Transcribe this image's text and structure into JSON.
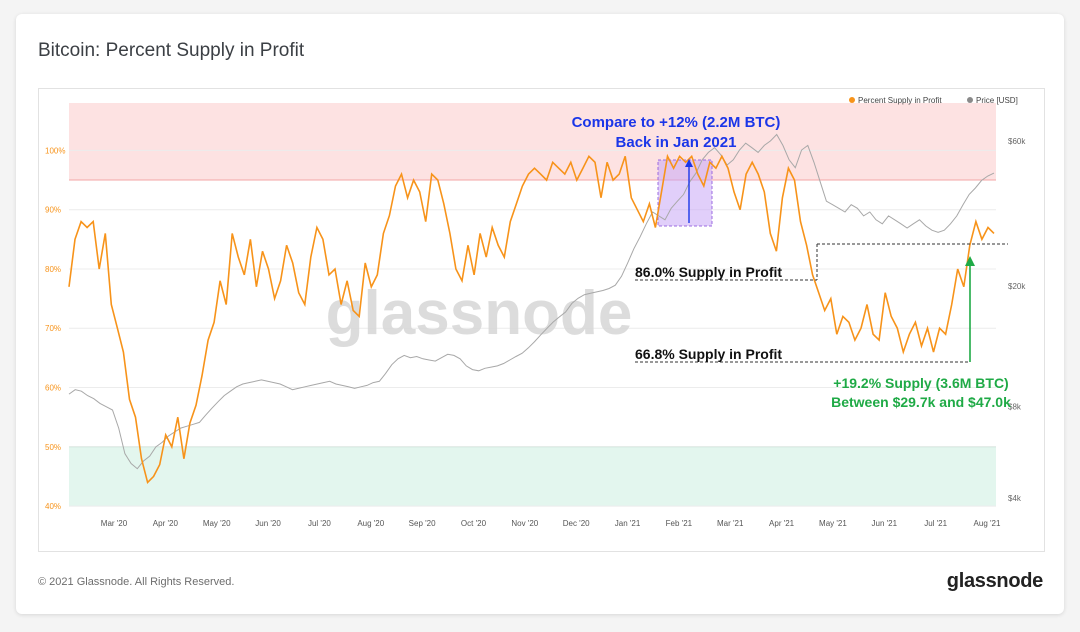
{
  "title": "Bitcoin: Percent Supply in Profit",
  "footer": {
    "copyright": "© 2021 Glassnode. All Rights Reserved.",
    "logo": "glassnode"
  },
  "watermark": "glassnode",
  "colors": {
    "supply": "#f7931a",
    "price": "#a8a8a8",
    "red_zone": "#fde2e2",
    "green_zone": "#e3f6ee",
    "blue": "#1b36e8",
    "green": "#1faa46"
  },
  "chart_data": {
    "type": "line",
    "x_ticks": [
      "Mar '20",
      "Apr '20",
      "May '20",
      "Jun '20",
      "Jul '20",
      "Aug '20",
      "Sep '20",
      "Oct '20",
      "Nov '20",
      "Dec '20",
      "Jan '21",
      "Feb '21",
      "Mar '21",
      "Apr '21",
      "May '21",
      "Jun '21",
      "Jul '21",
      "Aug '21"
    ],
    "y_left_ticks": [
      "40%",
      "50%",
      "60%",
      "70%",
      "80%",
      "90%",
      "100%"
    ],
    "y_left_range": [
      39,
      108
    ],
    "y_right_ticks": [
      "$4k",
      "$8k",
      "$20k",
      "$60k"
    ],
    "y_right_scale": "log",
    "y_right_range": [
      3600,
      80000
    ],
    "legend": [
      {
        "name": "Percent Supply in Profit",
        "color": "#f7931a"
      },
      {
        "name": "Price [USD]",
        "color": "#a8a8a8"
      }
    ],
    "legend_position": "top-right",
    "bands": [
      {
        "from": 95,
        "to": 108,
        "color": "#fde2e2"
      },
      {
        "from": 40,
        "to": 50,
        "color": "#e3f6ee"
      }
    ],
    "series": [
      {
        "name": "Percent Supply in Profit",
        "axis": "left",
        "values": [
          77,
          85,
          88,
          87,
          88,
          80,
          86,
          74,
          70,
          66,
          58,
          55,
          48,
          44,
          45,
          47,
          52,
          50,
          55,
          48,
          54,
          57,
          62,
          68,
          71,
          78,
          74,
          86,
          82,
          79,
          85,
          77,
          83,
          80,
          75,
          78,
          84,
          81,
          76,
          74,
          82,
          87,
          85,
          79,
          80,
          74,
          78,
          73,
          72,
          81,
          77,
          79,
          86,
          89,
          94,
          96,
          92,
          95,
          93,
          88,
          96,
          95,
          91,
          86,
          80,
          78,
          84,
          79,
          86,
          82,
          87,
          84,
          82,
          88,
          91,
          94,
          96,
          97,
          96,
          95,
          98,
          97,
          96,
          98,
          95,
          97,
          99,
          98,
          92,
          98,
          95,
          96,
          99,
          92,
          90,
          88,
          91,
          87,
          93,
          99,
          97,
          99,
          98,
          99,
          96,
          94,
          98,
          97,
          99,
          97,
          93,
          90,
          96,
          98,
          96,
          93,
          86,
          83,
          92,
          97,
          95,
          88,
          84,
          79,
          76,
          73,
          75,
          69,
          72,
          71,
          68,
          70,
          74,
          69,
          68,
          76,
          72,
          70,
          66,
          69,
          71,
          67,
          70,
          66,
          70,
          69,
          74,
          80,
          77,
          84,
          88,
          85,
          87,
          86
        ]
      },
      {
        "name": "Price [USD]",
        "axis": "right",
        "values": [
          8800,
          9100,
          9000,
          8700,
          8500,
          8200,
          8000,
          7800,
          6800,
          5600,
          5200,
          5000,
          5300,
          5500,
          5900,
          6100,
          6400,
          6600,
          6800,
          6900,
          7000,
          7100,
          7500,
          7900,
          8300,
          8700,
          9000,
          9300,
          9500,
          9600,
          9700,
          9800,
          9700,
          9600,
          9500,
          9300,
          9100,
          9200,
          9300,
          9400,
          9500,
          9600,
          9700,
          9500,
          9400,
          9300,
          9200,
          9300,
          9400,
          9600,
          9700,
          10300,
          11000,
          11500,
          11800,
          11600,
          11700,
          11500,
          11400,
          11300,
          11600,
          11900,
          11800,
          11500,
          10900,
          10600,
          10500,
          10700,
          10800,
          10900,
          11100,
          11400,
          11700,
          12000,
          12500,
          13100,
          13800,
          14500,
          15200,
          15800,
          16400,
          17500,
          18200,
          18700,
          18900,
          19100,
          19300,
          19600,
          20100,
          21500,
          23800,
          26500,
          29000,
          32000,
          35000,
          34000,
          33000,
          36000,
          38000,
          40000,
          44000,
          47000,
          52000,
          55000,
          57000,
          54000,
          50000,
          52000,
          56000,
          59000,
          57000,
          55000,
          58000,
          60000,
          63000,
          58000,
          52000,
          49000,
          56000,
          58000,
          51000,
          44000,
          38000,
          37000,
          36000,
          35000,
          37000,
          36000,
          34000,
          35000,
          33000,
          32000,
          34000,
          33000,
          32000,
          31000,
          32000,
          33000,
          31500,
          30500,
          30000,
          30500,
          32000,
          34000,
          37000,
          40000,
          42000,
          44500,
          46000,
          47000
        ]
      }
    ]
  },
  "annotations": {
    "compare_line1": "Compare to +12% (2.2M BTC)",
    "compare_line2": "Back in Jan 2021",
    "supply_86": "86.0% Supply in Profit",
    "supply_668": "66.8% Supply in Profit",
    "gain_line1": "+19.2% Supply (3.6M BTC)",
    "gain_line2": "Between $29.7k and $47.0k"
  }
}
